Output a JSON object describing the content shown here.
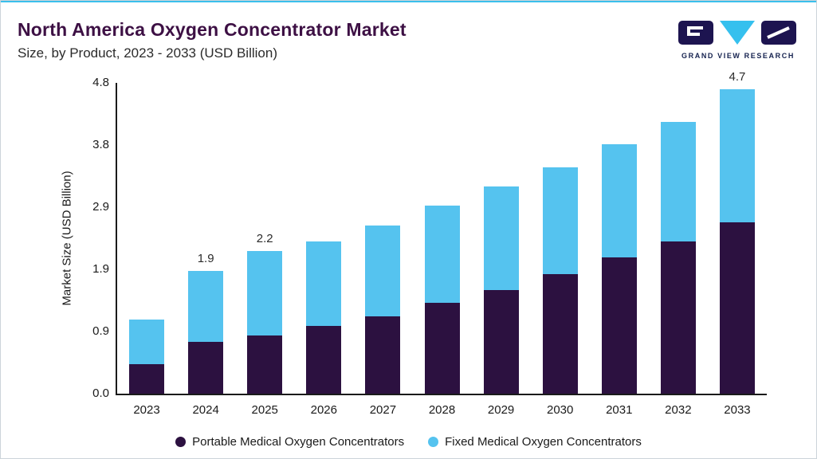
{
  "page": {
    "accent_color": "#3bbfec",
    "title_color": "#3d1044"
  },
  "logo": {
    "text": "GRAND VIEW RESEARCH",
    "mark_dark": "#1d1450",
    "mark_cyan": "#35c0ee"
  },
  "chart_data": {
    "type": "bar",
    "stacked": true,
    "title": "North America Oxygen Concentrator Market",
    "subtitle": "Size, by Product, 2023 - 2033 (USD Billion)",
    "ylabel": "Market Size (USD Billion)",
    "categories": [
      "2023",
      "2024",
      "2025",
      "2026",
      "2027",
      "2028",
      "2029",
      "2030",
      "2031",
      "2032",
      "2033"
    ],
    "series": [
      {
        "name": "Portable Medical Oxygen Concentrators",
        "color": "#2c1140",
        "values": [
          0.45,
          0.8,
          0.9,
          1.05,
          1.2,
          1.4,
          1.6,
          1.85,
          2.1,
          2.35,
          2.65
        ]
      },
      {
        "name": "Fixed Medical Oxygen Concentrators",
        "color": "#55c3ef",
        "values": [
          0.7,
          1.1,
          1.3,
          1.3,
          1.4,
          1.5,
          1.6,
          1.65,
          1.75,
          1.85,
          2.05
        ]
      }
    ],
    "totals": [
      1.15,
      1.9,
      2.2,
      2.35,
      2.6,
      2.9,
      3.2,
      3.5,
      3.85,
      4.2,
      4.7
    ],
    "bar_value_labels": [
      "",
      "1.9",
      "2.2",
      "",
      "",
      "",
      "",
      "",
      "",
      "",
      "4.7"
    ],
    "yticks": [
      "4.8",
      "3.8",
      "2.9",
      "1.9",
      "0.9",
      "0.0"
    ],
    "ylim": [
      0,
      4.8
    ],
    "grid": false,
    "legend_position": "bottom"
  }
}
